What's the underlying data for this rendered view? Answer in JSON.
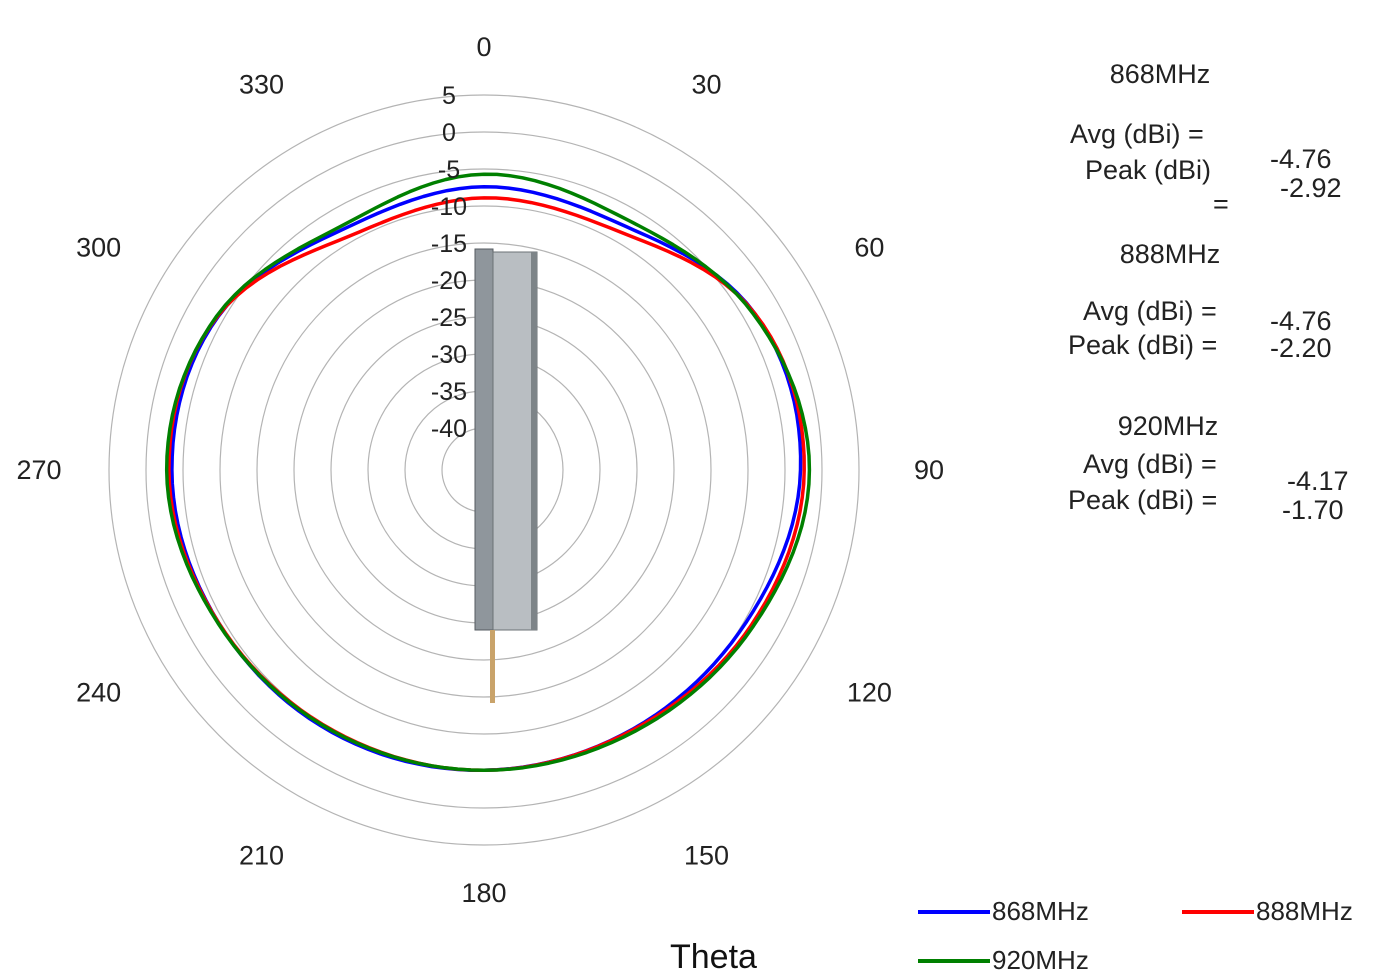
{
  "chart_data": {
    "type": "polar",
    "axis_label": "Theta",
    "angle_ticks": [
      "0",
      "30",
      "60",
      "90",
      "120",
      "150",
      "180",
      "210",
      "240",
      "270",
      "300",
      "330"
    ],
    "radial_ticks": [
      "5",
      "0",
      "-5",
      "-10",
      "-15",
      "-20",
      "-25",
      "-30",
      "-35",
      "-40"
    ],
    "rlim": [
      -45,
      5
    ],
    "grid": true,
    "legend_position": "bottom-right",
    "theta": [
      0,
      30,
      60,
      90,
      120,
      150,
      180,
      210,
      240,
      270,
      300,
      330
    ],
    "series": [
      {
        "name": "868MHz",
        "color": "#0000ff",
        "values": [
          -7.4,
          -7.6,
          -3.4,
          -2.9,
          -4.7,
          -5.3,
          -5.1,
          -4.7,
          -4.3,
          -3.5,
          -4.2,
          -8.0
        ]
      },
      {
        "name": "888MHz",
        "color": "#ff0000",
        "values": [
          -8.9,
          -8.6,
          -3.4,
          -2.4,
          -3.9,
          -5.2,
          -5.1,
          -5.0,
          -4.3,
          -3.1,
          -4.1,
          -9.2
        ]
      },
      {
        "name": "920MHz",
        "color": "#008000",
        "values": [
          -5.7,
          -6.7,
          -3.6,
          -1.7,
          -3.6,
          -4.9,
          -5.1,
          -4.9,
          -4.2,
          -2.8,
          -4.0,
          -7.5
        ]
      }
    ]
  },
  "stats": [
    {
      "title": "868MHz",
      "avg_label": "Avg (dBi) =",
      "peak_label": "Peak (dBi)",
      "peak_eq": "=",
      "avg": "-4.76",
      "peak": "-2.92"
    },
    {
      "title": "888MHz",
      "avg_label": "Avg (dBi) =",
      "peak_label": "Peak (dBi) =",
      "avg": "-4.76",
      "peak": "-2.20"
    },
    {
      "title": "920MHz",
      "avg_label": "Avg (dBi) =",
      "peak_label": "Peak (dBi) =",
      "avg": "-4.17",
      "peak": "-1.70"
    }
  ],
  "legend": [
    {
      "label": "868MHz",
      "color": "#0000ff"
    },
    {
      "label": "888MHz",
      "color": "#ff0000"
    },
    {
      "label": "920MHz",
      "color": "#008000"
    }
  ]
}
